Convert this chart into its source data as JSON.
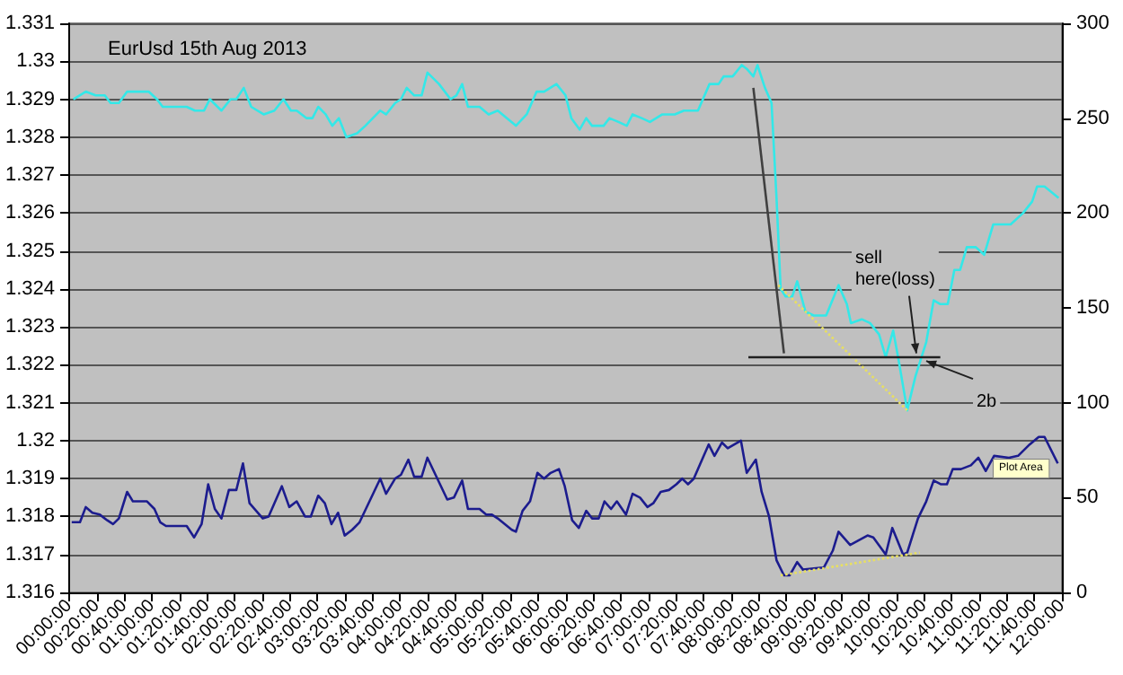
{
  "chart_data": {
    "type": "line",
    "title": "EurUsd 15th Aug 2013",
    "marker": "none",
    "grid": "y",
    "xlim": [
      0,
      12
    ],
    "xticks": [
      {
        "value": 0,
        "label": "00:00:00"
      },
      {
        "value": 0.3333,
        "label": "00:20:00"
      },
      {
        "value": 0.6667,
        "label": "00:40:00"
      },
      {
        "value": 1,
        "label": "01:00:00"
      },
      {
        "value": 1.3333,
        "label": "01:20:00"
      },
      {
        "value": 1.6667,
        "label": "01:40:00"
      },
      {
        "value": 2,
        "label": "02:00:00"
      },
      {
        "value": 2.3333,
        "label": "02:20:00"
      },
      {
        "value": 2.6667,
        "label": "02:40:00"
      },
      {
        "value": 3,
        "label": "03:00:00"
      },
      {
        "value": 3.3333,
        "label": "03:20:00"
      },
      {
        "value": 3.6667,
        "label": "03:40:00"
      },
      {
        "value": 4,
        "label": "04:00:00"
      },
      {
        "value": 4.3333,
        "label": "04:20:00"
      },
      {
        "value": 4.6667,
        "label": "04:40:00"
      },
      {
        "value": 5,
        "label": "05:00:00"
      },
      {
        "value": 5.3333,
        "label": "05:20:00"
      },
      {
        "value": 5.6667,
        "label": "05:40:00"
      },
      {
        "value": 6,
        "label": "06:00:00"
      },
      {
        "value": 6.3333,
        "label": "06:20:00"
      },
      {
        "value": 6.6667,
        "label": "06:40:00"
      },
      {
        "value": 7,
        "label": "07:00:00"
      },
      {
        "value": 7.3333,
        "label": "07:20:00"
      },
      {
        "value": 7.6667,
        "label": "07:40:00"
      },
      {
        "value": 8,
        "label": "08:00:00"
      },
      {
        "value": 8.3333,
        "label": "08:20:00"
      },
      {
        "value": 8.6667,
        "label": "08:40:00"
      },
      {
        "value": 9,
        "label": "09:00:00"
      },
      {
        "value": 9.3333,
        "label": "09:20:00"
      },
      {
        "value": 9.6667,
        "label": "09:40:00"
      },
      {
        "value": 10,
        "label": "10:00:00"
      },
      {
        "value": 10.3333,
        "label": "10:20:00"
      },
      {
        "value": 10.6667,
        "label": "10:40:00"
      },
      {
        "value": 11,
        "label": "11:00:00"
      },
      {
        "value": 11.3333,
        "label": "11:20:00"
      },
      {
        "value": 11.6667,
        "label": "11:40:00"
      },
      {
        "value": 12,
        "label": "12:00:00"
      }
    ],
    "ylim": [
      1.316,
      1.331
    ],
    "yticks": [
      1.316,
      1.317,
      1.318,
      1.319,
      1.32,
      1.321,
      1.322,
      1.323,
      1.324,
      1.325,
      1.326,
      1.327,
      1.328,
      1.329,
      1.33,
      1.331
    ],
    "y2lim": [
      0,
      300
    ],
    "y2ticks": [
      0,
      50,
      100,
      150,
      200,
      250,
      300
    ],
    "series": [
      {
        "color": "#33e8e8",
        "x": [
          0.05,
          0.2,
          0.32,
          0.43,
          0.5,
          0.6,
          0.7,
          0.78,
          0.96,
          1.06,
          1.13,
          1.42,
          1.52,
          1.63,
          1.7,
          1.84,
          1.95,
          2.02,
          2.11,
          2.2,
          2.35,
          2.48,
          2.59,
          2.68,
          2.75,
          2.87,
          2.94,
          3.01,
          3.1,
          3.18,
          3.26,
          3.35,
          3.48,
          3.58,
          3.76,
          3.83,
          3.94,
          4.01,
          4.08,
          4.17,
          4.26,
          4.33,
          4.47,
          4.61,
          4.68,
          4.75,
          4.82,
          4.96,
          5.07,
          5.18,
          5.4,
          5.53,
          5.65,
          5.74,
          5.89,
          6.0,
          6.07,
          6.17,
          6.25,
          6.32,
          6.46,
          6.53,
          6.64,
          6.74,
          6.81,
          6.92,
          7.02,
          7.17,
          7.32,
          7.43,
          7.6,
          7.74,
          7.85,
          7.91,
          8.02,
          8.13,
          8.19,
          8.27,
          8.32,
          8.41,
          8.49,
          8.55,
          8.6,
          8.66,
          8.74,
          8.8,
          8.9,
          9.0,
          9.15,
          9.3,
          9.4,
          9.45,
          9.58,
          9.68,
          9.79,
          9.87,
          9.96,
          10.02,
          10.13,
          10.23,
          10.36,
          10.45,
          10.53,
          10.62,
          10.7,
          10.77,
          10.85,
          10.96,
          11.06,
          11.17,
          11.28,
          11.38,
          11.53,
          11.64,
          11.7,
          11.79,
          11.96
        ],
        "values": [
          1.329,
          1.3292,
          1.3291,
          1.3291,
          1.3289,
          1.3289,
          1.3292,
          1.3292,
          1.3292,
          1.329,
          1.3288,
          1.3288,
          1.3287,
          1.3287,
          1.329,
          1.3287,
          1.329,
          1.329,
          1.3293,
          1.3288,
          1.3286,
          1.3287,
          1.329,
          1.3287,
          1.3287,
          1.3285,
          1.3285,
          1.3288,
          1.3286,
          1.3283,
          1.3285,
          1.328,
          1.3281,
          1.3283,
          1.3287,
          1.3286,
          1.3289,
          1.329,
          1.3293,
          1.3291,
          1.3291,
          1.3297,
          1.3294,
          1.329,
          1.3291,
          1.3294,
          1.3288,
          1.3288,
          1.3286,
          1.3287,
          1.3283,
          1.3286,
          1.3292,
          1.3292,
          1.3294,
          1.3291,
          1.3285,
          1.3282,
          1.3285,
          1.3283,
          1.3283,
          1.3285,
          1.3284,
          1.3283,
          1.3286,
          1.3285,
          1.3284,
          1.3286,
          1.3286,
          1.3287,
          1.3287,
          1.3294,
          1.3294,
          1.3296,
          1.3296,
          1.3299,
          1.3298,
          1.3296,
          1.3299,
          1.3293,
          1.3289,
          1.3264,
          1.324,
          1.3238,
          1.3238,
          1.3242,
          1.3234,
          1.3233,
          1.3233,
          1.3241,
          1.3236,
          1.3231,
          1.3232,
          1.3231,
          1.3228,
          1.3222,
          1.3229,
          1.3222,
          1.3208,
          1.3217,
          1.3226,
          1.3237,
          1.3236,
          1.3236,
          1.3245,
          1.3245,
          1.3251,
          1.3251,
          1.3249,
          1.3257,
          1.3257,
          1.3257,
          1.326,
          1.3263,
          1.3267,
          1.3267,
          1.3264
        ]
      },
      {
        "color": "#1c1c8e",
        "axis": "y2",
        "x": [
          0.03,
          0.13,
          0.2,
          0.28,
          0.37,
          0.46,
          0.53,
          0.6,
          0.7,
          0.77,
          0.94,
          1.03,
          1.1,
          1.17,
          1.42,
          1.51,
          1.6,
          1.68,
          1.76,
          1.84,
          1.93,
          2.02,
          2.1,
          2.18,
          2.34,
          2.41,
          2.57,
          2.66,
          2.75,
          2.85,
          2.92,
          3.01,
          3.09,
          3.17,
          3.25,
          3.33,
          3.42,
          3.51,
          3.76,
          3.83,
          3.94,
          4.01,
          4.1,
          4.17,
          4.26,
          4.33,
          4.57,
          4.65,
          4.75,
          4.82,
          4.96,
          5.04,
          5.11,
          5.18,
          5.35,
          5.4,
          5.48,
          5.57,
          5.66,
          5.74,
          5.82,
          5.92,
          5.99,
          6.08,
          6.16,
          6.25,
          6.32,
          6.4,
          6.47,
          6.55,
          6.62,
          6.73,
          6.81,
          6.9,
          6.99,
          7.06,
          7.15,
          7.25,
          7.34,
          7.41,
          7.48,
          7.55,
          7.73,
          7.8,
          7.89,
          7.96,
          8.12,
          8.19,
          8.3,
          8.37,
          8.46,
          8.55,
          8.64,
          8.71,
          8.8,
          8.87,
          9.08,
          9.12,
          9.23,
          9.3,
          9.44,
          9.65,
          9.72,
          9.87,
          9.95,
          10.08,
          10.13,
          10.26,
          10.36,
          10.45,
          10.54,
          10.61,
          10.68,
          10.78,
          10.9,
          10.99,
          11.08,
          11.18,
          11.36,
          11.47,
          11.61,
          11.72,
          11.79,
          11.95
        ],
        "values": [
          37,
          37,
          45,
          42,
          41,
          38,
          36,
          39,
          53,
          48,
          48,
          44,
          37,
          35,
          35,
          29,
          36,
          57,
          44,
          39,
          54,
          54,
          68,
          47,
          39,
          40,
          56,
          45,
          48,
          40,
          40,
          51,
          47,
          36,
          42,
          30,
          33,
          37,
          60,
          52,
          60,
          62,
          70,
          61,
          61,
          71,
          49,
          50,
          59,
          44,
          44,
          41,
          41,
          39,
          33,
          32,
          43,
          48,
          63,
          60,
          63,
          65,
          56,
          38,
          34,
          43,
          39,
          39,
          48,
          44,
          48,
          41,
          52,
          50,
          45,
          47,
          53,
          54,
          57,
          60,
          57,
          60,
          78,
          72,
          79,
          76,
          80,
          63,
          70,
          53,
          40,
          17,
          9,
          9,
          16,
          12,
          13,
          13,
          22,
          32,
          25,
          30,
          29,
          20,
          34,
          20,
          21,
          39,
          48,
          59,
          57,
          57,
          65,
          65,
          67,
          71,
          64,
          72,
          71,
          72,
          78,
          82,
          82,
          68
        ]
      },
      {
        "color": "#e8e060",
        "line_style": "dotted",
        "x": [
          8.57,
          10.13
        ],
        "values": [
          1.3241,
          1.3208
        ]
      },
      {
        "color": "#e8e060",
        "line_style": "dotted",
        "axis": "y2",
        "x": [
          8.6,
          10.28
        ],
        "values": [
          9,
          21
        ]
      },
      {
        "color": "#202020",
        "x": [
          8.21,
          10.53
        ],
        "values": [
          1.3222,
          1.3222
        ]
      },
      {
        "color": "#404040",
        "x": [
          8.27,
          8.64
        ],
        "values": [
          1.3293,
          1.3223
        ]
      }
    ],
    "annotations": [
      {
        "text": "sell\nhere(loss)",
        "x": 10.24,
        "y": 1.3223
      },
      {
        "text": "2b",
        "x": 10.36,
        "y": 1.3221
      },
      "Plot Area"
    ]
  }
}
